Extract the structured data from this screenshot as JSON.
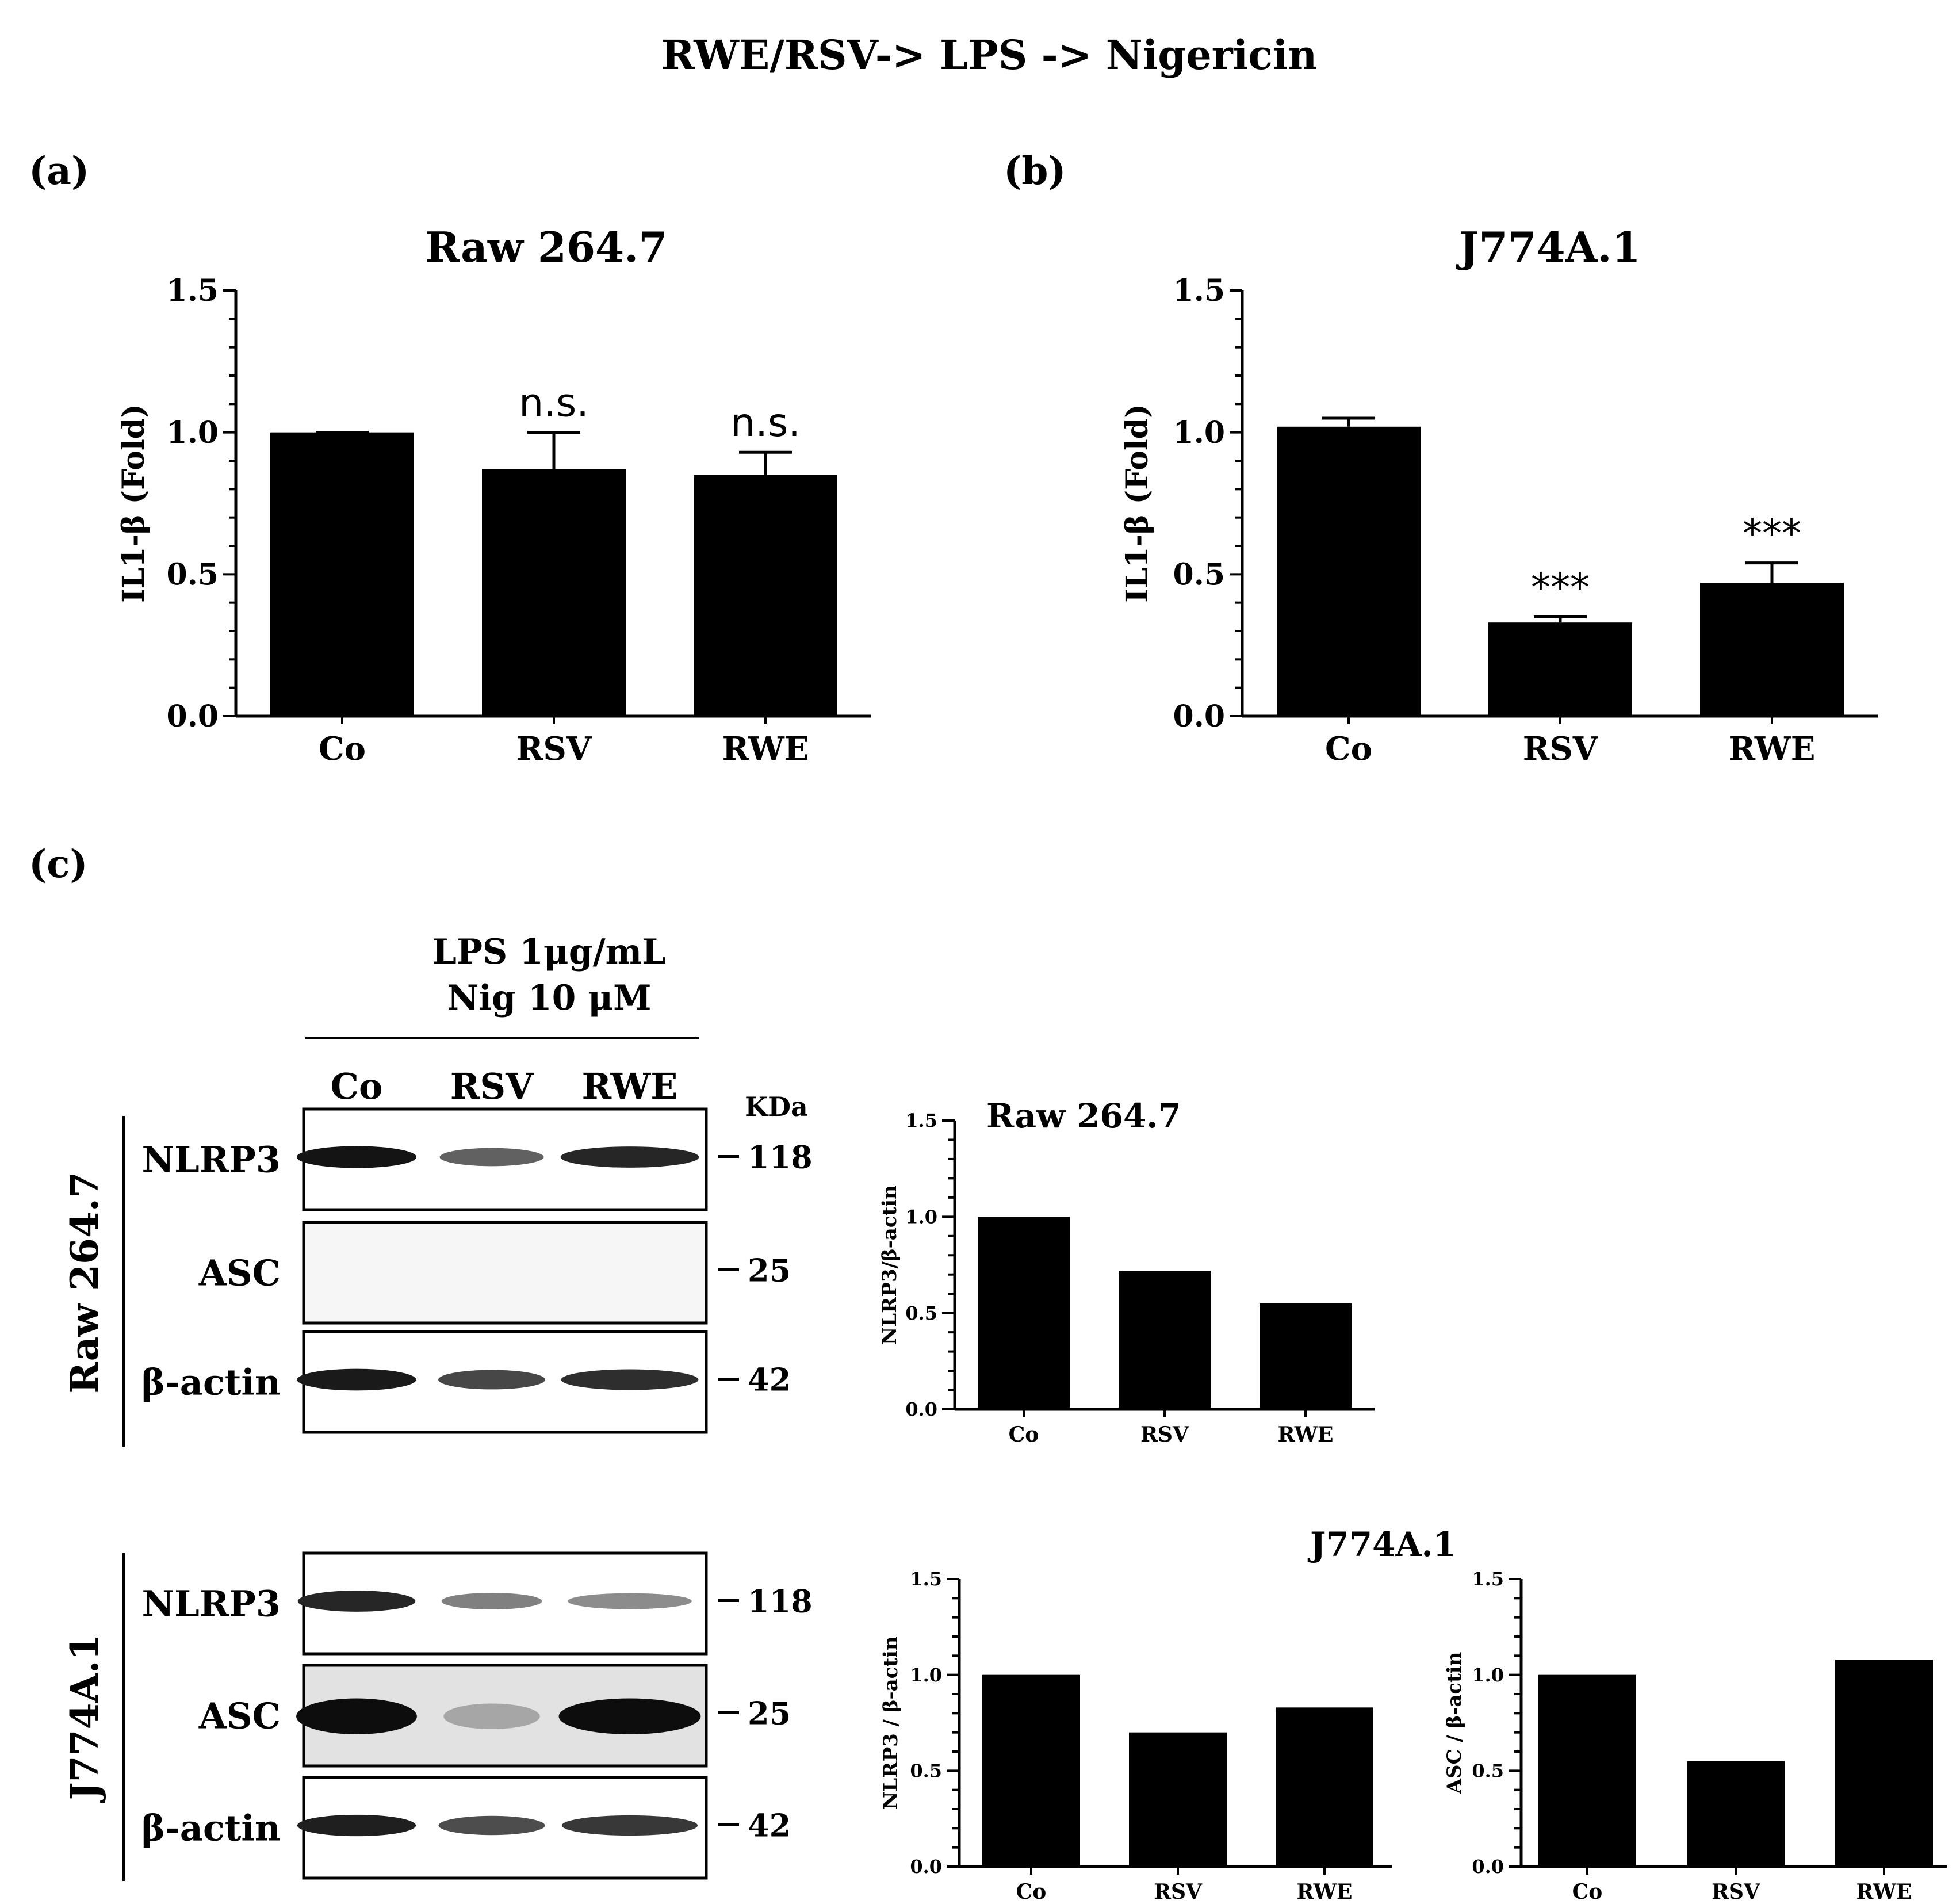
{
  "figure": {
    "title": "RWE/RSV-> LPS -> Nigericin",
    "panel_a_label": "(a)",
    "panel_b_label": "(b)",
    "panel_c_label": "(c)"
  },
  "blot": {
    "treatment_line1": "LPS 1μg/mL",
    "treatment_line2": "Nig 10 μM",
    "lanes": [
      "Co",
      "RSV",
      "RWE"
    ],
    "kda_label": "KDa",
    "groups": [
      {
        "name": "Raw 264.7",
        "rows": [
          {
            "protein": "NLRP3",
            "kda": "118",
            "lanes": [
              0.92,
              0.62,
              0.85
            ]
          },
          {
            "protein": "ASC",
            "kda": "25",
            "lanes": [
              0.0,
              0.0,
              0.0
            ]
          },
          {
            "protein": "β-actin",
            "kda": "42",
            "lanes": [
              0.9,
              0.72,
              0.82
            ]
          }
        ]
      },
      {
        "name": "J774A.1",
        "rows": [
          {
            "protein": "NLRP3",
            "kda": "118",
            "lanes": [
              0.85,
              0.5,
              0.45
            ]
          },
          {
            "protein": "ASC",
            "kda": "25",
            "lanes": [
              0.95,
              0.35,
              0.95
            ]
          },
          {
            "protein": "β-actin",
            "kda": "42",
            "lanes": [
              0.88,
              0.7,
              0.78
            ]
          }
        ]
      }
    ]
  },
  "chart_data": [
    {
      "id": "a",
      "type": "bar",
      "title": "Raw 264.7",
      "ylabel": "IL1-β (Fold)",
      "xlabel": "",
      "categories": [
        "Co",
        "RSV",
        "RWE"
      ],
      "values": [
        1.0,
        0.87,
        0.85
      ],
      "errors": [
        0.0,
        0.13,
        0.08
      ],
      "annotations": [
        "",
        "n.s.",
        "n.s."
      ],
      "ylim": [
        0,
        1.5
      ],
      "yticks": [
        "0.0",
        "0.5",
        "1.0",
        "1.5"
      ],
      "grid": false
    },
    {
      "id": "b",
      "type": "bar",
      "title": "J774A.1",
      "ylabel": "IL1-β (Fold)",
      "xlabel": "",
      "categories": [
        "Co",
        "RSV",
        "RWE"
      ],
      "values": [
        1.02,
        0.33,
        0.47
      ],
      "errors": [
        0.03,
        0.02,
        0.07
      ],
      "annotations": [
        "",
        "***",
        "***"
      ],
      "ylim": [
        0,
        1.5
      ],
      "yticks": [
        "0.0",
        "0.5",
        "1.0",
        "1.5"
      ],
      "grid": false
    },
    {
      "id": "c1",
      "type": "bar",
      "title": "Raw 264.7",
      "ylabel": "NLRP3/β-actin",
      "xlabel": "",
      "categories": [
        "Co",
        "RSV",
        "RWE"
      ],
      "values": [
        1.0,
        0.72,
        0.55
      ],
      "ylim": [
        0,
        1.5
      ],
      "yticks": [
        "0.0",
        "0.5",
        "1.0",
        "1.5"
      ],
      "grid": false
    },
    {
      "id": "c2",
      "type": "bar",
      "title": "J774A.1",
      "ylabel": "NLRP3 / β-actin",
      "xlabel": "",
      "categories": [
        "Co",
        "RSV",
        "RWE"
      ],
      "values": [
        1.0,
        0.7,
        0.83
      ],
      "ylim": [
        0,
        1.5
      ],
      "yticks": [
        "0.0",
        "0.5",
        "1.0",
        "1.5"
      ],
      "grid": false
    },
    {
      "id": "c3",
      "type": "bar",
      "title": "",
      "ylabel": "ASC / β-actin",
      "xlabel": "",
      "categories": [
        "Co",
        "RSV",
        "RWE"
      ],
      "values": [
        1.0,
        0.55,
        1.08
      ],
      "ylim": [
        0,
        1.5
      ],
      "yticks": [
        "0.0",
        "0.5",
        "1.0",
        "1.5"
      ],
      "grid": false
    }
  ]
}
